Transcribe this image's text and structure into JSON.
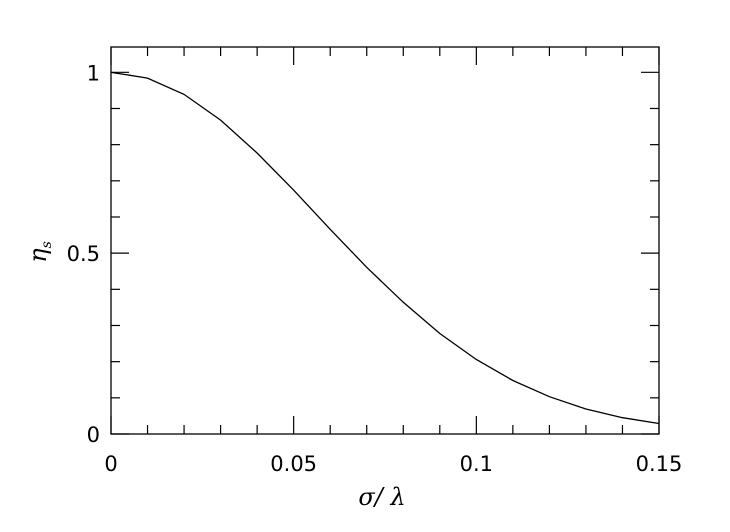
{
  "chart_data": {
    "type": "line",
    "title": "",
    "xlabel": "σ/ λ",
    "ylabel": "η",
    "ylabel_subscript": "s",
    "xlim": [
      0,
      0.15
    ],
    "ylim": [
      0,
      1.07
    ],
    "grid": false,
    "x_ticks": [
      0,
      0.05,
      0.1,
      0.15
    ],
    "x_tick_labels": [
      "0",
      "0.05",
      "0.1",
      "0.15"
    ],
    "y_ticks": [
      0,
      0.5,
      1
    ],
    "y_tick_labels": [
      "0",
      "0.5",
      "1"
    ],
    "x_minor_step": 0.01,
    "y_minor_step": 0.1,
    "line_color": "#000000",
    "series": [
      {
        "x": [
          0,
          0.01,
          0.02,
          0.03,
          0.04,
          0.05,
          0.06,
          0.07,
          0.08,
          0.09,
          0.1,
          0.11,
          0.12,
          0.13,
          0.14,
          0.15
        ],
        "y": [
          1.0,
          0.984,
          0.939,
          0.868,
          0.777,
          0.674,
          0.566,
          0.461,
          0.364,
          0.278,
          0.206,
          0.148,
          0.103,
          0.069,
          0.045,
          0.029
        ]
      }
    ]
  }
}
